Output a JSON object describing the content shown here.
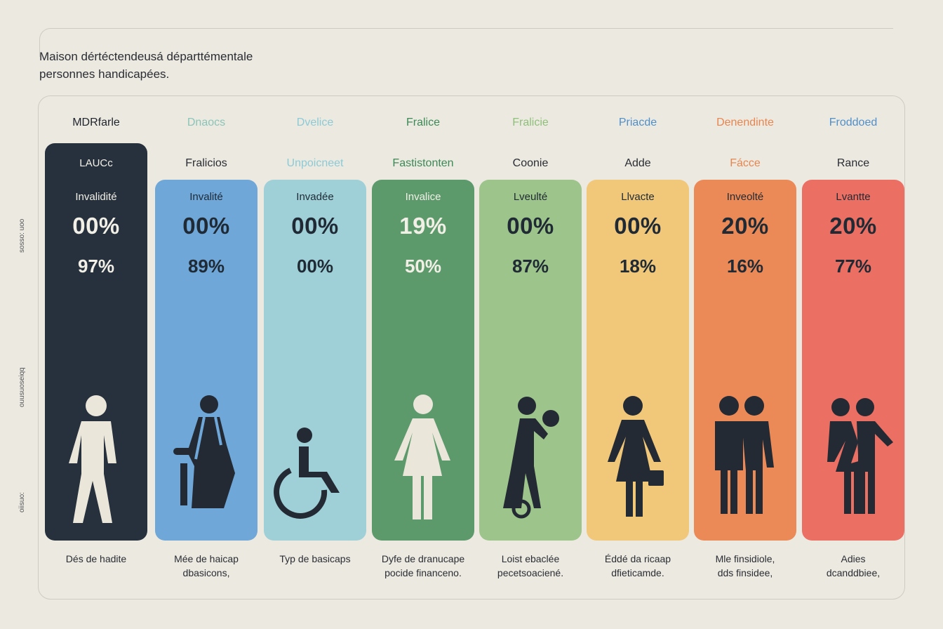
{
  "title": {
    "line1": "Maison dértéctendeusá départtémentale",
    "line2": "personnes handicapées."
  },
  "side_labels": [
    "sosso: uoo",
    "ouusuoseiqq",
    "oiisuo:"
  ],
  "columns": [
    {
      "head": "MDRfarle",
      "head_color": "#1f242c",
      "sub": "LAUCc",
      "kind": "Invalidité",
      "a": "00%",
      "b": "97%",
      "bg": "#26313d",
      "text": "#f2efe6",
      "figure": "standing-person-icon",
      "fig_color": "#ebe6da",
      "caption": [
        "Dés de hadite",
        ""
      ]
    },
    {
      "head": "Dnaocs",
      "head_color": "#8bc5b8",
      "sub": "Fralicios",
      "kind": "Invalité",
      "a": "00%",
      "b": "89%",
      "bg": "#6ea7d8",
      "text": "#1f2a35",
      "figure": "person-with-walker-icon",
      "fig_color": "#232a33",
      "caption": [
        "Mée de haicap",
        "dbasicons,"
      ]
    },
    {
      "head": "Dvelice",
      "head_color": "#8ccad6",
      "sub": "Unpoicneet",
      "kind": "Invadée",
      "a": "00%",
      "b": "00%",
      "bg": "#9fd0d8",
      "text": "#1f2a35",
      "figure": "wheelchair-user-icon",
      "fig_color": "#232a33",
      "caption": [
        "Typ de basicaps",
        ""
      ]
    },
    {
      "head": "Fralice",
      "head_color": "#3b8a55",
      "sub": "Fastistonten",
      "kind": "Invalice",
      "a": "19%",
      "b": "50%",
      "bg": "#5c9a6c",
      "text": "#f2efe6",
      "figure": "standing-woman-icon",
      "fig_color": "#ebe6da",
      "caption": [
        "Dyfe de dranucape",
        "pocide financeno."
      ]
    },
    {
      "head": "Fralicie",
      "head_color": "#8fc07a",
      "sub": "Coonie",
      "kind": "Lveulté",
      "a": "00%",
      "b": "87%",
      "bg": "#9dc48a",
      "text": "#1f2a35",
      "figure": "person-with-ball-icon",
      "fig_color": "#232a33",
      "caption": [
        "Loist ebaclée",
        "pecetsoaciené."
      ]
    },
    {
      "head": "Priacde",
      "head_color": "#4f8fca",
      "sub": "Adde",
      "kind": "Llvacte",
      "a": "00%",
      "b": "18%",
      "bg": "#f1c77a",
      "text": "#1f2a35",
      "figure": "woman-with-bag-icon",
      "fig_color": "#232a33",
      "caption": [
        "Éddé da ricaap",
        "dfieticamde."
      ]
    },
    {
      "head": "Denendinte",
      "head_color": "#e8864f",
      "sub": "Fácce",
      "kind": "Inveolté",
      "a": "20%",
      "b": "16%",
      "bg": "#ec8a57",
      "text": "#1f2a35",
      "figure": "two-persons-icon",
      "fig_color": "#232a33",
      "caption": [
        "Mle finsidiole,",
        "dds finsidee,"
      ]
    },
    {
      "head": "Froddoed",
      "head_color": "#4f8fca",
      "sub": "Rance",
      "kind": "Lvantte",
      "a": "20%",
      "b": "77%",
      "bg": "#ec6f63",
      "text": "#1f2a35",
      "figure": "couple-icon",
      "fig_color": "#232a33",
      "caption": [
        "Adies",
        "dcanddbiee,"
      ]
    }
  ]
}
